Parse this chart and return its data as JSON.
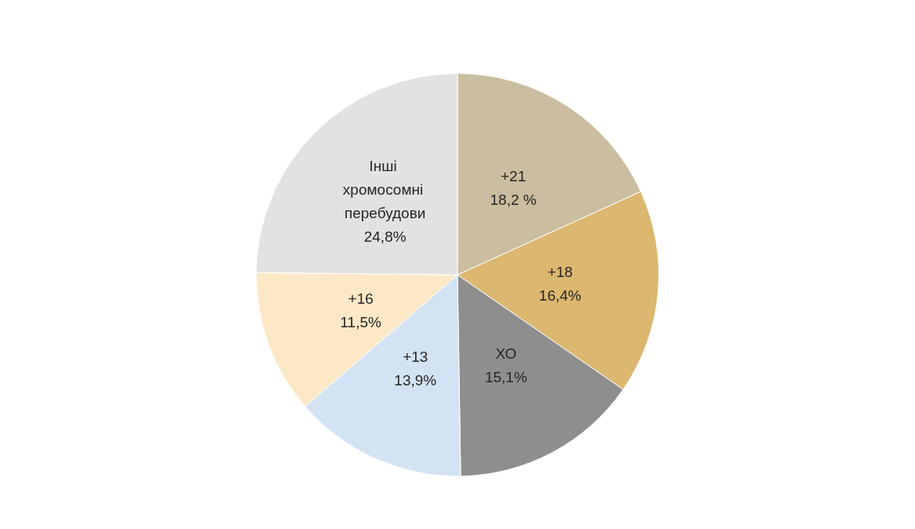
{
  "chart_data": {
    "type": "pie",
    "categories": [
      "+21",
      "+18",
      "ХО",
      "+13",
      "+16",
      "Інші хромосомні перебудови"
    ],
    "values": [
      18.2,
      16.4,
      15.1,
      13.9,
      11.5,
      24.8
    ],
    "value_labels": [
      "18,2 %",
      "16,4%",
      "15,1%",
      "13,9%",
      "11,5%",
      "24,8%"
    ],
    "colors": [
      "#cbbd9f",
      "#dcb76f",
      "#8e8e8e",
      "#d3e3f3",
      "#fbe8c6",
      "#e3e1e1"
    ],
    "legend": false
  }
}
